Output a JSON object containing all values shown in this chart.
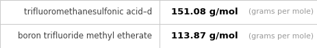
{
  "rows": [
    {
      "name": "trifluoromethanesulfonic acid–d",
      "value": "151.08",
      "unit": " g/mol",
      "unit_extra": "  (grams per mole)"
    },
    {
      "name": "boron trifluoride methyl etherate",
      "value": "113.87",
      "unit": " g/mol",
      "unit_extra": "  (grams per mole)"
    }
  ],
  "background_color": "#ffffff",
  "border_color": "#c8c8c8",
  "text_color_name": "#404040",
  "text_color_value": "#000000",
  "text_color_unit_extra": "#999999",
  "col_split": 0.503,
  "name_fontsize": 8.5,
  "val_fontsize": 9.5,
  "extra_fontsize": 7.8,
  "fig_width": 4.64,
  "fig_height": 0.7
}
